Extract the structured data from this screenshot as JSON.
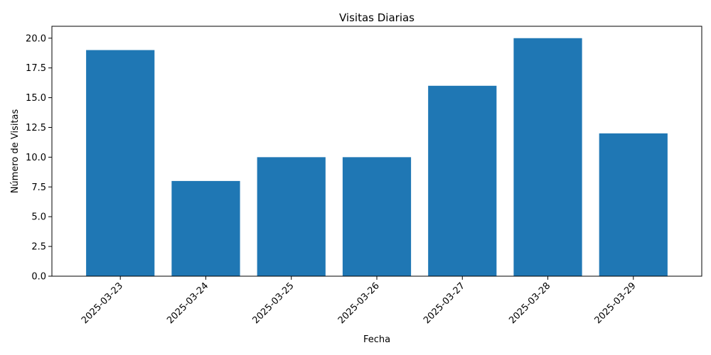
{
  "chart_data": {
    "type": "bar",
    "title": "Visitas Diarias",
    "xlabel": "Fecha",
    "ylabel": "Número de Visitas",
    "categories": [
      "2025-03-23",
      "2025-03-24",
      "2025-03-25",
      "2025-03-26",
      "2025-03-27",
      "2025-03-28",
      "2025-03-29"
    ],
    "values": [
      19,
      8,
      10,
      10,
      16,
      20,
      12
    ],
    "ylim": [
      0,
      21
    ],
    "yticks": [
      "0.0",
      "2.5",
      "5.0",
      "7.5",
      "10.0",
      "12.5",
      "15.0",
      "17.5",
      "20.0"
    ],
    "x_tick_rotation_deg": 45,
    "grid": false,
    "bar_color": "#1f77b4"
  }
}
